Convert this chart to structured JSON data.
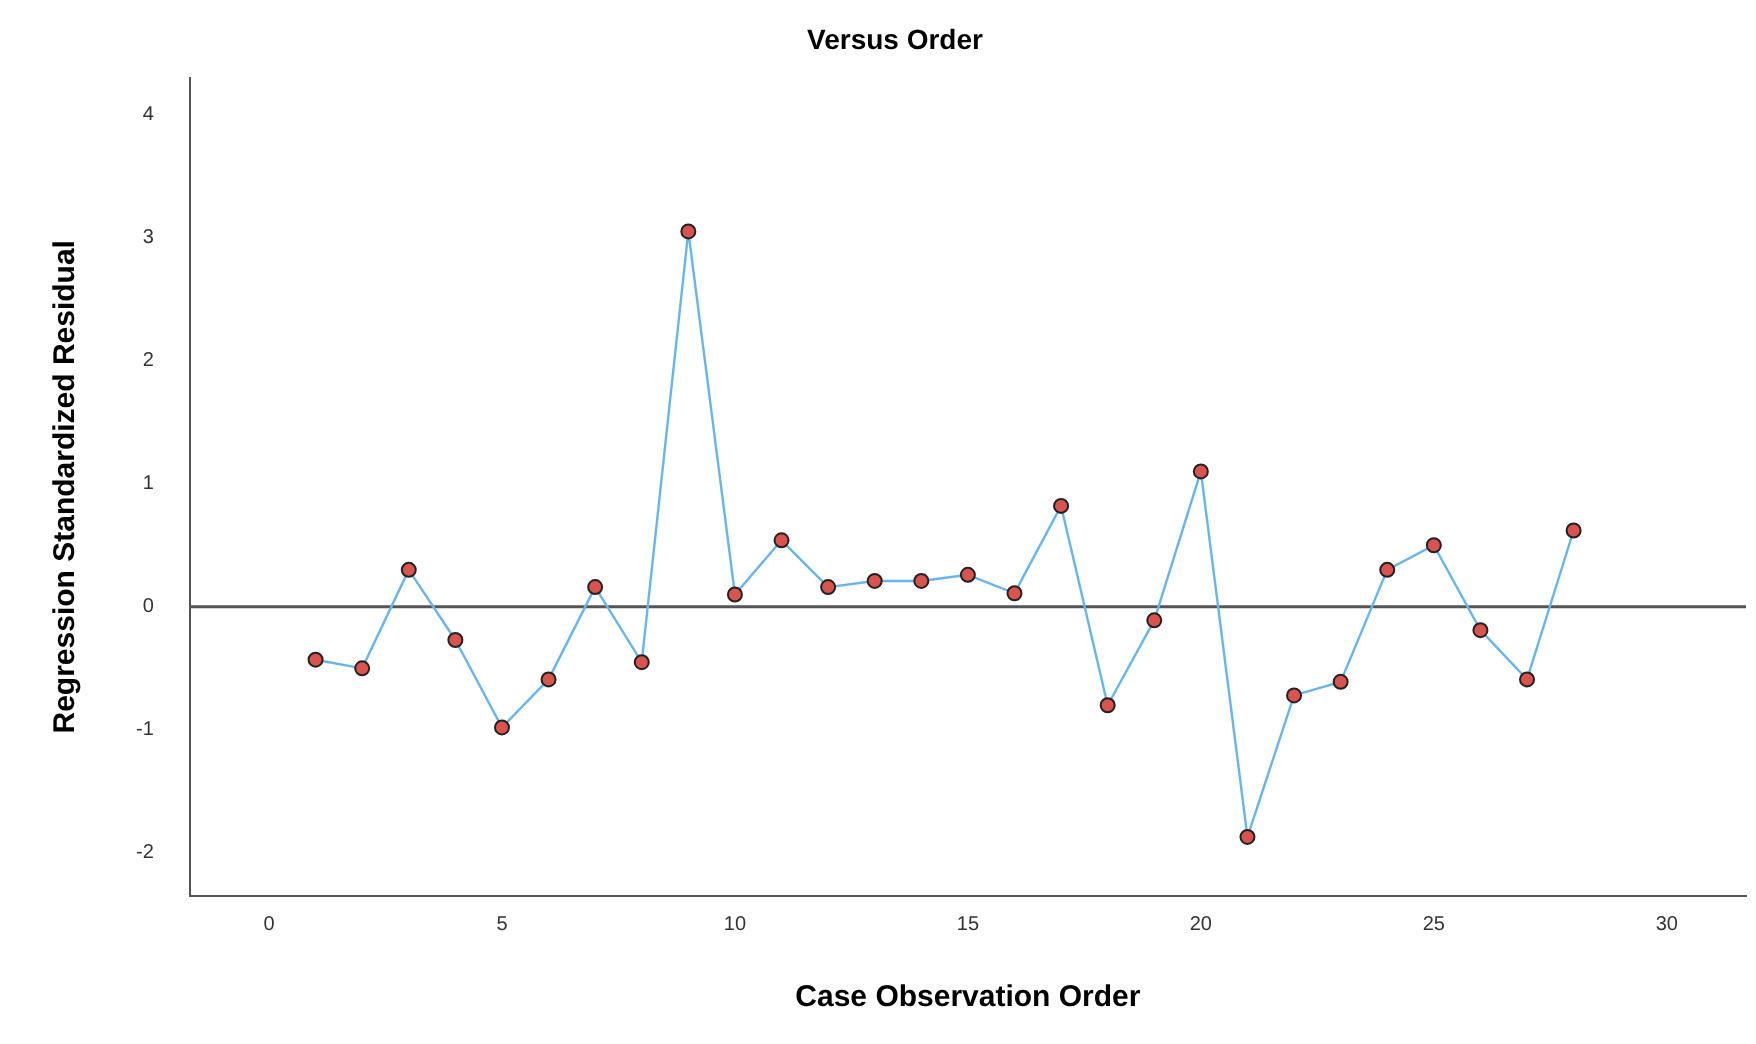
{
  "chart_data": {
    "type": "line",
    "title": "Versus Order",
    "xlabel": "Case Observation Order",
    "ylabel": "Regression Standardized Residual",
    "x": [
      1,
      2,
      3,
      4,
      5,
      6,
      7,
      8,
      9,
      10,
      11,
      12,
      13,
      14,
      15,
      16,
      17,
      18,
      19,
      20,
      21,
      22,
      23,
      24,
      25,
      26,
      27,
      28
    ],
    "series": [
      {
        "color": "#6ab4ee",
        "values": [
          -0.43,
          -0.5,
          0.3,
          -0.27,
          -0.98,
          -0.59,
          0.16,
          -0.45,
          3.05,
          0.1,
          0.54,
          0.16,
          0.21,
          0.21,
          0.26,
          0.11,
          0.82,
          -0.8,
          -0.11,
          1.1,
          -1.87,
          -0.72,
          -0.61,
          0.3,
          0.5,
          -0.19,
          -0.59,
          0.62
        ]
      }
    ],
    "xlim": [
      -1.7,
      31.7
    ],
    "xticks": [
      0,
      5,
      10,
      15,
      20,
      25,
      30
    ],
    "ylim": [
      -2.35,
      4.3
    ],
    "yticks": [
      -2,
      -1,
      0,
      1,
      2,
      3,
      4
    ],
    "ref_lines": [
      {
        "axis": "y",
        "value": 0,
        "color": "#555555"
      }
    ],
    "grid": false,
    "legend": false,
    "marker": "circle",
    "line_style": "solid"
  }
}
